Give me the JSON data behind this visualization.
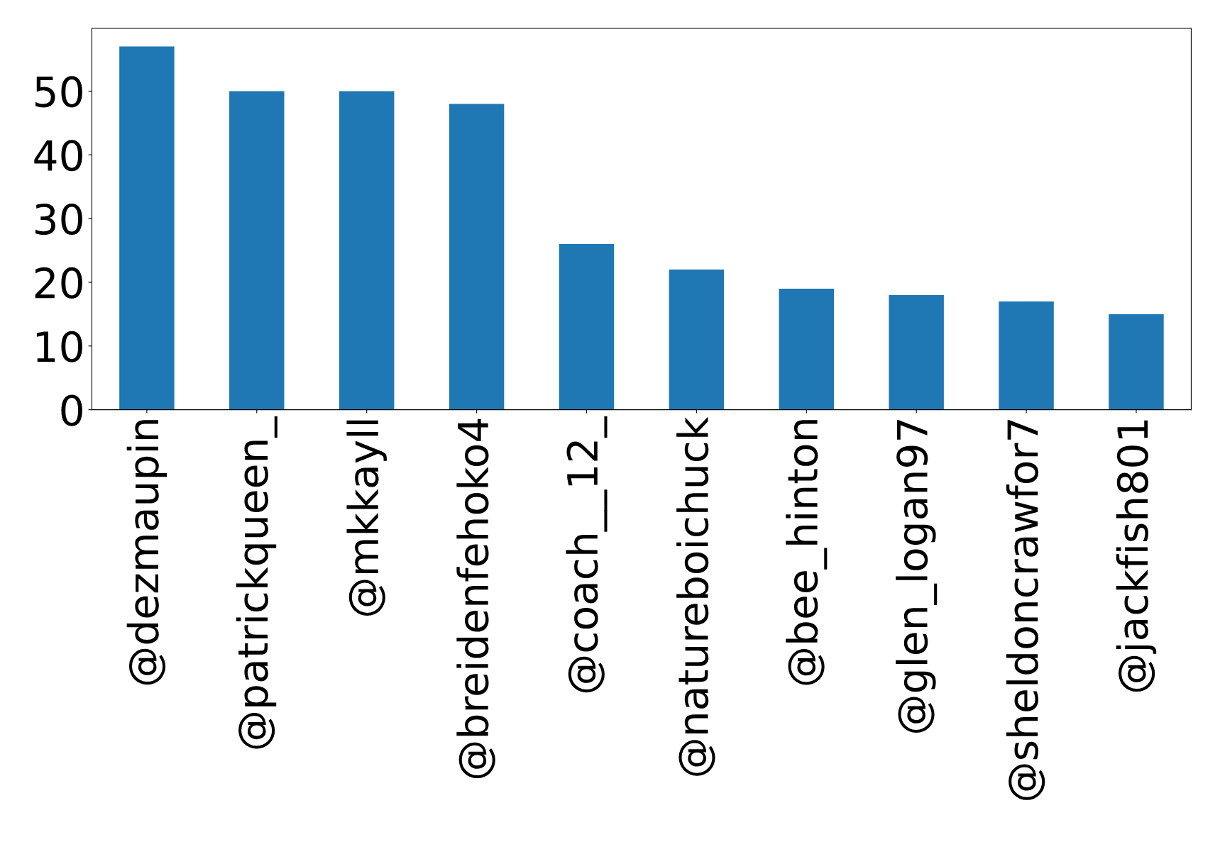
{
  "chart_data": {
    "type": "bar",
    "categories": [
      "@dezmaupin",
      "@patrickqueen_",
      "@mkkayll",
      "@breidenfehoko4",
      "@coach__12_",
      "@natureboichuck",
      "@bee_hinton",
      "@glen_logan97",
      "@sheldoncrawfor7",
      "@jackfish801"
    ],
    "values": [
      57,
      50,
      50,
      48,
      26,
      22,
      19,
      18,
      17,
      15
    ],
    "color": "#1f77b4",
    "ylim": [
      0,
      59.85
    ],
    "yticks": [
      0,
      10,
      20,
      30,
      40,
      50
    ],
    "grid": false
  }
}
